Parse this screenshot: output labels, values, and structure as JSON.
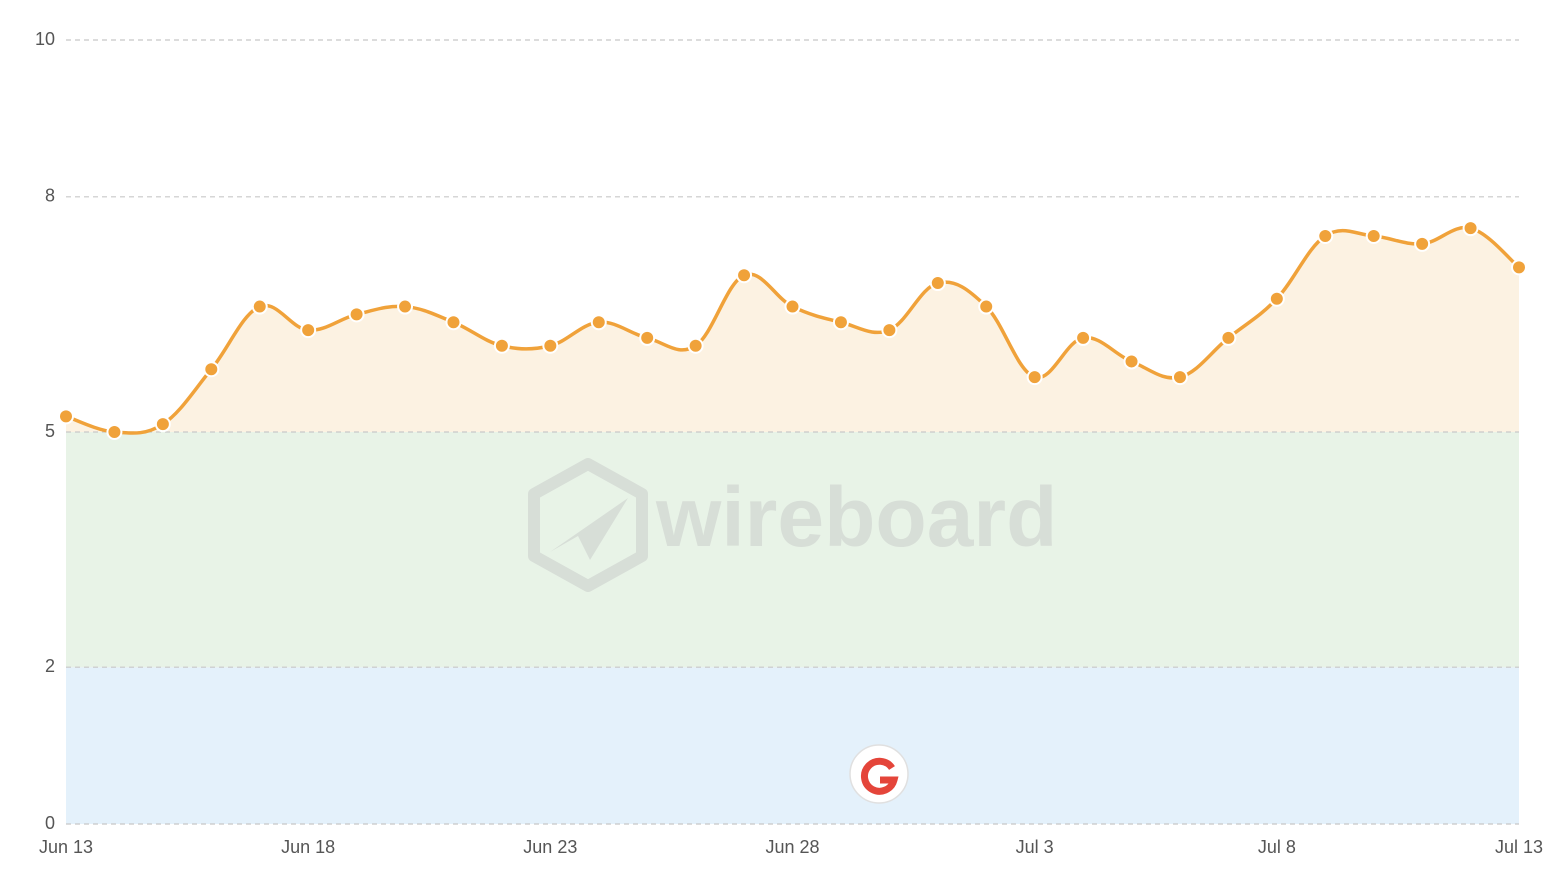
{
  "chart_data": {
    "type": "line",
    "categories": [
      "Jun 13",
      null,
      null,
      null,
      null,
      "Jun 18",
      null,
      null,
      null,
      null,
      "Jun 23",
      null,
      null,
      null,
      null,
      "Jun 28",
      null,
      null,
      null,
      null,
      "Jul 3",
      null,
      null,
      null,
      null,
      "Jul 8",
      null,
      null,
      null,
      null,
      "Jul 13"
    ],
    "values": [
      5.2,
      5.0,
      5.1,
      5.8,
      6.6,
      6.3,
      6.5,
      6.6,
      6.4,
      6.1,
      6.1,
      6.4,
      6.2,
      6.1,
      7.0,
      6.6,
      6.4,
      6.3,
      6.9,
      6.6,
      5.7,
      6.2,
      5.9,
      5.7,
      6.2,
      6.7,
      7.5,
      7.5,
      7.4,
      7.6,
      7.1
    ],
    "color": "#f0a23a",
    "area_color": "#fcf2e2",
    "bands": [
      {
        "from": 0,
        "to": 2,
        "color": "#e4f1fb"
      },
      {
        "from": 2,
        "to": 5,
        "color": "#e8f3e7"
      }
    ],
    "ylim": [
      0,
      10
    ],
    "yticks": [
      0,
      2,
      5,
      8,
      10
    ],
    "grid": true,
    "watermark": "wireboard"
  }
}
